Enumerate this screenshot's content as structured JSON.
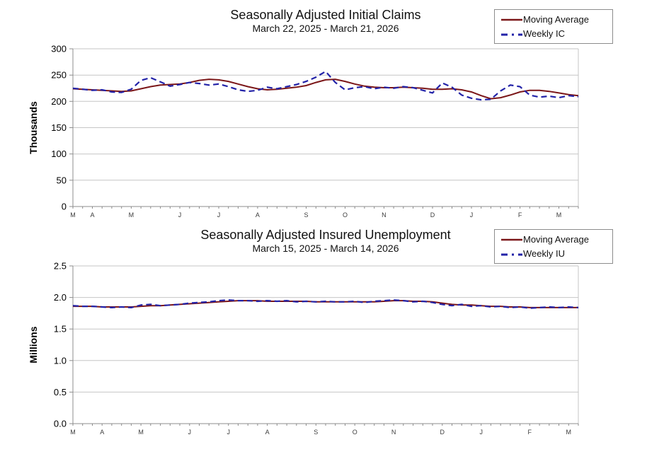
{
  "colors": {
    "moving_average": "#7b1618",
    "weekly": "#2323a8",
    "grid": "#c6c6c6",
    "axis": "#8c8c8c",
    "tick_text": "#000000",
    "month_text": "#3c3c3c"
  },
  "chart_data": [
    {
      "type": "line",
      "title": "Seasonally Adjusted Initial Claims",
      "subtitle": "March 22, 2025 - March 21, 2026",
      "y_axis_label": "Thousands",
      "ylim": [
        0,
        300
      ],
      "y_ticks": [
        0,
        50,
        100,
        150,
        200,
        250,
        300
      ],
      "y_tick_labels": [
        "0",
        "50",
        "100",
        "150",
        "200",
        "250",
        "300"
      ],
      "weeks": 53,
      "grid": "horizontal",
      "legend_position": "top-right",
      "x_month_labels": [
        "M",
        "A",
        "M",
        "J",
        "J",
        "A",
        "S",
        "O",
        "N",
        "D",
        "J",
        "F",
        "M"
      ],
      "x_month_indices": [
        0,
        2,
        6,
        11,
        15,
        19,
        24,
        28,
        32,
        37,
        41,
        46,
        50
      ],
      "series": [
        {
          "name": "Moving Average",
          "style": "solid",
          "color": "#7b1618",
          "values": [
            224,
            223,
            222,
            221,
            220,
            219,
            220,
            224,
            228,
            231,
            232,
            233,
            236,
            240,
            242,
            241,
            238,
            233,
            228,
            224,
            222,
            223,
            225,
            227,
            230,
            236,
            241,
            242,
            238,
            233,
            229,
            227,
            226,
            226,
            227,
            226,
            225,
            223,
            223,
            224,
            222,
            218,
            211,
            205,
            207,
            212,
            218,
            221,
            221,
            219,
            216,
            213,
            211
          ]
        },
        {
          "name": "Weekly IC",
          "style": "dashed",
          "color": "#2323a8",
          "values": [
            225,
            223,
            221,
            222,
            218,
            217,
            223,
            240,
            245,
            237,
            229,
            232,
            236,
            234,
            231,
            233,
            228,
            222,
            219,
            221,
            227,
            224,
            228,
            232,
            238,
            246,
            257,
            236,
            222,
            226,
            228,
            224,
            227,
            225,
            228,
            226,
            221,
            216,
            235,
            227,
            212,
            206,
            203,
            204,
            220,
            231,
            228,
            212,
            208,
            210,
            207,
            211,
            209
          ]
        }
      ]
    },
    {
      "type": "line",
      "title": "Seasonally Adjusted Insured Unemployment",
      "subtitle": "March 15, 2025 - March 14, 2026",
      "y_axis_label": "Millions",
      "ylim": [
        0,
        2.5
      ],
      "y_ticks": [
        0,
        0.5,
        1.0,
        1.5,
        2.0,
        2.5
      ],
      "y_tick_labels": [
        "0.0",
        "0.5",
        "1.0",
        "1.5",
        "2.0",
        "2.5"
      ],
      "weeks": 53,
      "grid": "horizontal",
      "legend_position": "top-right",
      "x_month_labels": [
        "M",
        "A",
        "M",
        "J",
        "J",
        "A",
        "S",
        "O",
        "N",
        "D",
        "J",
        "F",
        "M"
      ],
      "x_month_indices": [
        0,
        3,
        7,
        12,
        16,
        20,
        25,
        29,
        33,
        38,
        42,
        47,
        51
      ],
      "series": [
        {
          "name": "Moving Average",
          "style": "solid",
          "color": "#7b1618",
          "values": [
            1.86,
            1.86,
            1.86,
            1.85,
            1.85,
            1.85,
            1.85,
            1.86,
            1.87,
            1.87,
            1.88,
            1.89,
            1.9,
            1.91,
            1.92,
            1.93,
            1.94,
            1.95,
            1.95,
            1.95,
            1.94,
            1.94,
            1.94,
            1.94,
            1.94,
            1.93,
            1.93,
            1.93,
            1.93,
            1.93,
            1.93,
            1.93,
            1.94,
            1.95,
            1.95,
            1.94,
            1.94,
            1.93,
            1.91,
            1.89,
            1.88,
            1.88,
            1.87,
            1.86,
            1.86,
            1.85,
            1.85,
            1.84,
            1.84,
            1.84,
            1.84,
            1.84,
            1.84
          ]
        },
        {
          "name": "Weekly IU",
          "style": "dashed",
          "color": "#2323a8",
          "values": [
            1.87,
            1.86,
            1.86,
            1.85,
            1.84,
            1.85,
            1.84,
            1.88,
            1.89,
            1.87,
            1.88,
            1.89,
            1.91,
            1.92,
            1.93,
            1.95,
            1.96,
            1.95,
            1.95,
            1.94,
            1.95,
            1.94,
            1.95,
            1.93,
            1.94,
            1.93,
            1.94,
            1.93,
            1.93,
            1.94,
            1.92,
            1.94,
            1.95,
            1.96,
            1.95,
            1.93,
            1.94,
            1.92,
            1.89,
            1.87,
            1.89,
            1.86,
            1.87,
            1.85,
            1.86,
            1.84,
            1.85,
            1.83,
            1.84,
            1.85,
            1.84,
            1.85,
            1.84
          ]
        }
      ]
    }
  ]
}
